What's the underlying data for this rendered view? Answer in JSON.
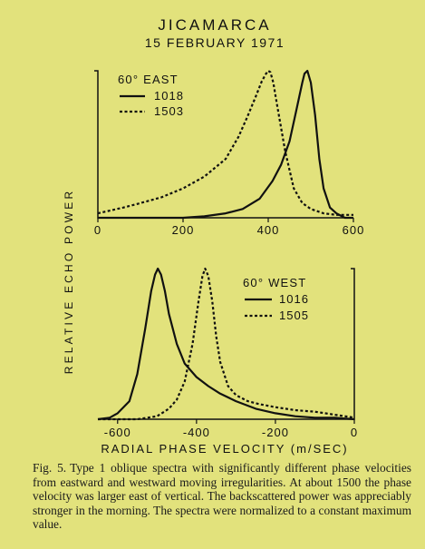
{
  "figure": {
    "title": "JICAMARCA",
    "date": "15 FEBRUARY 1971",
    "y_axis_label": "RELATIVE ECHO POWER",
    "x_axis_label": "RADIAL PHASE VELOCITY (m/SEC)",
    "caption_label": "Fig. 5.",
    "caption": "Type 1 oblique spectra with significantly different phase velocities from eastward and westward moving irregularities. At about 1500 the phase velocity was larger east of vertical. The backscattered power was appreciably stronger in the morning. The spectra were normalized to a constant maximum value."
  },
  "chart_data": [
    {
      "type": "line",
      "panel_label": "60° EAST",
      "xlim": [
        0,
        600
      ],
      "ylim": [
        0,
        1
      ],
      "x_ticks": [
        "0",
        "200",
        "400",
        "600"
      ],
      "x_tick_values": [
        0,
        200,
        400,
        600
      ],
      "legend_position": "top-left",
      "grid": false,
      "series": [
        {
          "name": "1018",
          "style": "solid",
          "x": [
            0,
            50,
            100,
            150,
            200,
            250,
            300,
            340,
            380,
            410,
            430,
            450,
            465,
            480,
            485,
            492,
            500,
            510,
            520,
            530,
            545,
            560,
            580,
            600
          ],
          "y": [
            0.0,
            0.0,
            0.0,
            0.0,
            0.0,
            0.01,
            0.03,
            0.06,
            0.13,
            0.25,
            0.36,
            0.52,
            0.72,
            0.92,
            0.98,
            1.0,
            0.92,
            0.7,
            0.4,
            0.2,
            0.07,
            0.03,
            0.0,
            0.0
          ]
        },
        {
          "name": "1503",
          "style": "dashed",
          "x": [
            0,
            30,
            60,
            100,
            150,
            200,
            250,
            300,
            330,
            350,
            370,
            385,
            395,
            400,
            405,
            412,
            420,
            440,
            460,
            480,
            500,
            530,
            560,
            600
          ],
          "y": [
            0.03,
            0.05,
            0.07,
            0.1,
            0.14,
            0.2,
            0.28,
            0.4,
            0.55,
            0.68,
            0.82,
            0.93,
            0.98,
            1.0,
            0.99,
            0.92,
            0.78,
            0.45,
            0.2,
            0.1,
            0.06,
            0.03,
            0.02,
            0.02
          ]
        }
      ]
    },
    {
      "type": "line",
      "panel_label": "60° WEST",
      "xlim": [
        -650,
        0
      ],
      "ylim": [
        0,
        1
      ],
      "x_ticks": [
        "-600",
        "-400",
        "-200",
        "0"
      ],
      "x_tick_values": [
        -600,
        -400,
        -200,
        0
      ],
      "legend_position": "top-right",
      "grid": false,
      "series": [
        {
          "name": "1016",
          "style": "solid",
          "x": [
            -650,
            -620,
            -600,
            -570,
            -550,
            -530,
            -515,
            -505,
            -498,
            -490,
            -480,
            -470,
            -450,
            -430,
            -400,
            -370,
            -340,
            -300,
            -250,
            -200,
            -150,
            -100,
            -50,
            0
          ],
          "y": [
            0.0,
            0.01,
            0.04,
            0.12,
            0.3,
            0.6,
            0.85,
            0.96,
            1.0,
            0.96,
            0.85,
            0.7,
            0.5,
            0.37,
            0.28,
            0.22,
            0.17,
            0.12,
            0.07,
            0.04,
            0.02,
            0.01,
            0.01,
            0.0
          ]
        },
        {
          "name": "1505",
          "style": "dashed",
          "x": [
            -650,
            -600,
            -550,
            -500,
            -470,
            -450,
            -430,
            -410,
            -395,
            -385,
            -378,
            -370,
            -360,
            -350,
            -340,
            -320,
            -300,
            -270,
            -240,
            -200,
            -150,
            -100,
            -50,
            0
          ],
          "y": [
            0.0,
            0.0,
            0.0,
            0.02,
            0.07,
            0.13,
            0.25,
            0.5,
            0.78,
            0.95,
            1.0,
            0.95,
            0.78,
            0.55,
            0.38,
            0.22,
            0.16,
            0.12,
            0.1,
            0.08,
            0.06,
            0.05,
            0.03,
            0.01
          ]
        }
      ]
    }
  ]
}
